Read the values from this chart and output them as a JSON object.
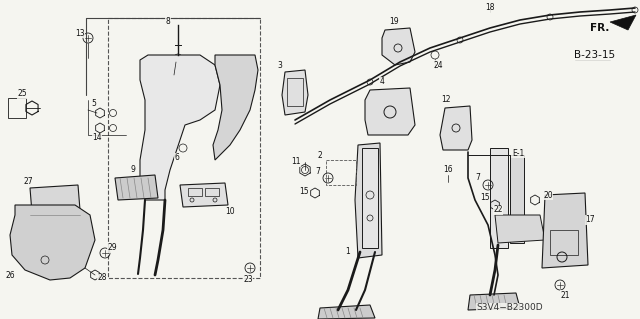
{
  "background_color": "#f5f5f0",
  "fig_width": 6.4,
  "fig_height": 3.19,
  "dpi": 100,
  "diagram_code": "S3V4−B2300D",
  "ref_code": "B-23-15",
  "direction_label": "FR.",
  "line_color": "#1a1a1a",
  "text_color": "#111111",
  "font_size_small": 5.5,
  "font_size_med": 6.5,
  "font_size_large": 8.0
}
